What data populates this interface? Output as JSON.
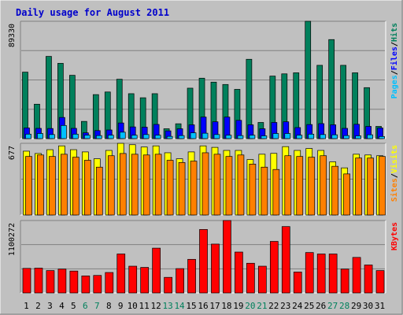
{
  "chart_data": [
    {
      "type": "bar",
      "title": "Daily usage for August 2011",
      "ymax_label": "89330",
      "legend": [
        "Pages",
        "/",
        "Files",
        "/",
        "Hits"
      ],
      "categories": [
        "1",
        "2",
        "3",
        "4",
        "5",
        "6",
        "7",
        "8",
        "9",
        "10",
        "11",
        "12",
        "13",
        "14",
        "15",
        "16",
        "17",
        "18",
        "19",
        "20",
        "21",
        "22",
        "23",
        "24",
        "25",
        "26",
        "27",
        "28",
        "29",
        "30",
        "31"
      ],
      "weekend_days": [
        "6",
        "7",
        "13",
        "14",
        "20",
        "21",
        "27",
        "28"
      ],
      "ylim": [
        0,
        89330
      ],
      "series": [
        {
          "name": "Hits",
          "values": [
            50600,
            26200,
            62600,
            57300,
            48200,
            13100,
            33500,
            35500,
            45200,
            34200,
            31100,
            34200,
            7500,
            11300,
            38400,
            46000,
            43000,
            41200,
            37500,
            60400,
            12300,
            47600,
            49300,
            50100,
            89330,
            55800,
            75400,
            55800,
            50100,
            38800,
            9300
          ]
        },
        {
          "name": "Files",
          "values": [
            8100,
            7800,
            7700,
            16100,
            7800,
            4400,
            6100,
            6600,
            11900,
            8900,
            8700,
            10800,
            5900,
            7500,
            10500,
            16400,
            12800,
            16400,
            13900,
            10500,
            7500,
            12300,
            12800,
            8400,
            10700,
            11400,
            10500,
            7800,
            10900,
            9300,
            8100
          ]
        },
        {
          "name": "Pages",
          "values": [
            3400,
            3900,
            3100,
            10000,
            3400,
            2600,
            2300,
            2600,
            4900,
            2600,
            3100,
            2600,
            1700,
            2300,
            4400,
            4100,
            3100,
            2600,
            2300,
            2600,
            2100,
            3900,
            3900,
            2600,
            3400,
            3100,
            2900,
            2300,
            2100,
            2900,
            1600
          ]
        }
      ],
      "colors": {
        "Hits": "#00805c",
        "Files": "#0000ff",
        "Pages": "#00c0ff"
      }
    },
    {
      "type": "bar",
      "ymax_label": "677",
      "legend": [
        "Sites",
        "/",
        "Visits"
      ],
      "categories": [
        "1",
        "2",
        "3",
        "4",
        "5",
        "6",
        "7",
        "8",
        "9",
        "10",
        "11",
        "12",
        "13",
        "14",
        "15",
        "16",
        "17",
        "18",
        "19",
        "20",
        "21",
        "22",
        "23",
        "24",
        "25",
        "26",
        "27",
        "28",
        "29",
        "30",
        "31"
      ],
      "ylim": [
        0,
        677
      ],
      "series": [
        {
          "name": "Visits",
          "values": [
            603,
            581,
            617,
            653,
            617,
            596,
            531,
            610,
            677,
            664,
            642,
            653,
            588,
            531,
            596,
            653,
            639,
            610,
            610,
            524,
            574,
            582,
            646,
            610,
            628,
            610,
            502,
            445,
            574,
            567,
            560
          ]
        },
        {
          "name": "Sites",
          "values": [
            553,
            567,
            553,
            574,
            546,
            517,
            452,
            560,
            581,
            574,
            567,
            574,
            517,
            496,
            509,
            588,
            574,
            553,
            567,
            481,
            452,
            430,
            560,
            553,
            546,
            560,
            460,
            388,
            538,
            538,
            553
          ]
        }
      ],
      "colors": {
        "Visits": "#ffff00",
        "Sites": "#ff8000"
      }
    },
    {
      "type": "bar",
      "ymax_label": "1100272",
      "legend": [
        "KBytes"
      ],
      "categories": [
        "1",
        "2",
        "3",
        "4",
        "5",
        "6",
        "7",
        "8",
        "9",
        "10",
        "11",
        "12",
        "13",
        "14",
        "15",
        "16",
        "17",
        "18",
        "19",
        "20",
        "21",
        "22",
        "23",
        "24",
        "25",
        "26",
        "27",
        "28",
        "29",
        "30",
        "31"
      ],
      "ylim": [
        0,
        1100272
      ],
      "series": [
        {
          "name": "KBytes",
          "values": [
            373300,
            377000,
            340100,
            362300,
            332800,
            258900,
            266300,
            310600,
            591800,
            406400,
            388000,
            680500,
            236800,
            369700,
            510500,
            964000,
            742300,
            1100272,
            621400,
            451200,
            406400,
            783000,
            1008300,
            318000,
            613900,
            591800,
            591800,
            362300,
            539900,
            425000,
            340100
          ]
        }
      ],
      "colors": {
        "KBytes": "#ff0000"
      }
    }
  ]
}
